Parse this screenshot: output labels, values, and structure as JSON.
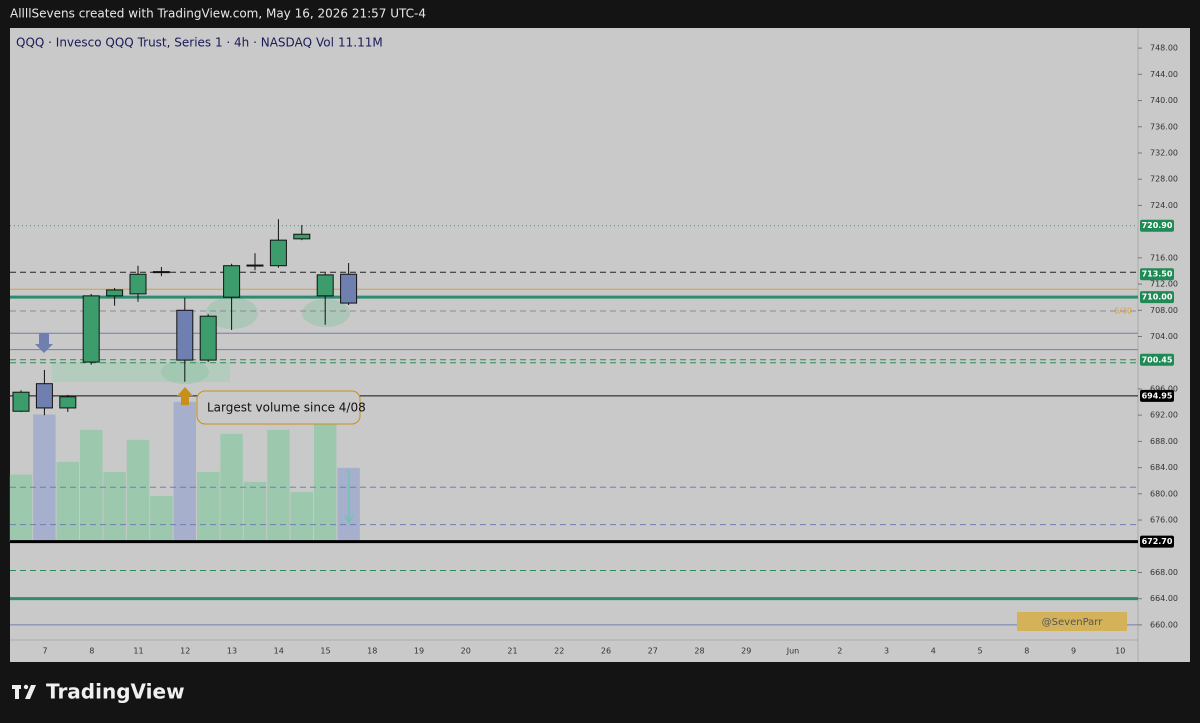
{
  "header": "AllllSevens created with TradingView.com, May 16, 2026 21:57 UTC-4",
  "footer": "TradingView",
  "chart_data": {
    "type": "candlestick",
    "title": "QQQ · Invesco QQQ Trust, Series 1 · 4h · NASDAQ",
    "volume_title": "Vol",
    "volume_value_label": "11.11M",
    "up_color": "#3d9c6b",
    "down_color": "#6f7fb0",
    "candles": [
      {
        "open": 692.6,
        "high": 695.8,
        "low": 692.5,
        "close": 695.5,
        "volume": 10.1
      },
      {
        "open": 696.8,
        "high": 698.9,
        "low": 692.0,
        "close": 693.1,
        "volume": 19.1
      },
      {
        "open": 693.1,
        "high": 695.1,
        "low": 692.5,
        "close": 694.8,
        "volume": 12.0
      },
      {
        "open": 700.1,
        "high": 710.5,
        "low": 699.7,
        "close": 710.2,
        "volume": 16.8
      },
      {
        "open": 710.2,
        "high": 711.4,
        "low": 708.7,
        "close": 711.1,
        "volume": 10.5
      },
      {
        "open": 710.5,
        "high": 714.8,
        "low": 709.3,
        "close": 713.5,
        "volume": 15.3
      },
      {
        "open": 713.8,
        "high": 714.6,
        "low": 713.2,
        "close": 713.9,
        "volume": 6.9
      },
      {
        "open": 708.0,
        "high": 709.9,
        "low": 697.1,
        "close": 700.4,
        "volume": 21.0
      },
      {
        "open": 700.4,
        "high": 707.4,
        "low": 700.1,
        "close": 707.1,
        "volume": 10.5
      },
      {
        "open": 710.0,
        "high": 715.1,
        "low": 705.0,
        "close": 714.8,
        "volume": 16.2
      },
      {
        "open": 714.8,
        "high": 716.7,
        "low": 714.1,
        "close": 714.9,
        "volume": 9.0
      },
      {
        "open": 714.8,
        "high": 721.9,
        "low": 714.5,
        "close": 718.7,
        "volume": 16.8
      },
      {
        "open": 718.9,
        "high": 721.0,
        "low": 718.7,
        "close": 719.6,
        "volume": 7.5
      },
      {
        "open": 710.2,
        "high": 713.7,
        "low": 705.8,
        "close": 713.4,
        "volume": 17.6
      },
      {
        "open": 713.5,
        "high": 715.2,
        "low": 708.8,
        "close": 709.1,
        "volume": 11.11
      }
    ],
    "x_labels": [
      "7",
      "8",
      "11",
      "12",
      "13",
      "14",
      "15",
      "18",
      "19",
      "20",
      "21",
      "22",
      "26",
      "27",
      "28",
      "29",
      "Jun",
      "2",
      "3",
      "4",
      "5",
      "8",
      "9",
      "10"
    ],
    "ylim": [
      658,
      750
    ],
    "volume_ylim": [
      0,
      40
    ],
    "yticks": [
      {
        "value": 660,
        "label": "660.00"
      },
      {
        "value": 664,
        "label": "664.00"
      },
      {
        "value": 668,
        "label": "668.00"
      },
      {
        "value": 676,
        "label": "676.00"
      },
      {
        "value": 680,
        "label": "680.00"
      },
      {
        "value": 684,
        "label": "684.00"
      },
      {
        "value": 688,
        "label": "688.00"
      },
      {
        "value": 692,
        "label": "692.00"
      },
      {
        "value": 696,
        "label": "696.00"
      },
      {
        "value": 704,
        "label": "704.00"
      },
      {
        "value": 708,
        "label": "708.00"
      },
      {
        "value": 712,
        "label": "712.00"
      },
      {
        "value": 716,
        "label": "716.00"
      },
      {
        "value": 724,
        "label": "724.00"
      },
      {
        "value": 728,
        "label": "728.00"
      },
      {
        "value": 732,
        "label": "732.00"
      },
      {
        "value": 736,
        "label": "736.00"
      },
      {
        "value": 740,
        "label": "740.00"
      },
      {
        "value": 744,
        "label": "744.00"
      },
      {
        "value": 748,
        "label": "748.00"
      }
    ],
    "levels": [
      {
        "value": 720.9,
        "color": "#3d9c6b",
        "style": "dotted"
      },
      {
        "value": 713.8,
        "color": "#222222",
        "style": "dashed"
      },
      {
        "value": 711.2,
        "color": "#d6a13a",
        "style": "solid"
      },
      {
        "value": 710.0,
        "color": "#2e8b6e",
        "style": "thick"
      },
      {
        "value": 707.9,
        "color": "#8a8a9a",
        "style": "dashed"
      },
      {
        "value": 704.5,
        "color": "#6f7fb0",
        "style": "solid"
      },
      {
        "value": 702.0,
        "color": "#6f7fb0",
        "style": "solid"
      },
      {
        "value": 700.45,
        "color": "#2e8b57",
        "style": "dashed"
      },
      {
        "value": 700.0,
        "color": "#2e8b57",
        "style": "dashed"
      },
      {
        "value": 694.95,
        "color": "#111111",
        "style": "solid"
      },
      {
        "value": 681.0,
        "color": "#6f7fb0",
        "style": "dashed"
      },
      {
        "value": 675.3,
        "color": "#6f7fb0",
        "style": "dashed"
      },
      {
        "value": 672.7,
        "color": "#000000",
        "style": "thick"
      },
      {
        "value": 668.3,
        "color": "#2e8b57",
        "style": "dashed"
      },
      {
        "value": 664.0,
        "color": "#2e8b6e",
        "style": "thick"
      },
      {
        "value": 660.0,
        "color": "#6f7fb0",
        "style": "solid"
      }
    ],
    "price_labels": [
      {
        "value": 720.9,
        "label": "720.90",
        "color": "#1f8a55"
      },
      {
        "value": 713.5,
        "label": "713.50",
        "color": "#1f8a55"
      },
      {
        "value": 710.0,
        "label": "710.00",
        "color": "#1f8a55"
      },
      {
        "value": 700.45,
        "label": "700.45",
        "color": "#1f8a55"
      },
      {
        "value": 694.95,
        "label": "694.95",
        "color": "#000000"
      },
      {
        "value": 672.7,
        "label": "672.70",
        "color": "#000000"
      }
    ],
    "annotation": "Largest volume since 4/08",
    "level_note": "6/30",
    "watermark": "@SevenParr"
  }
}
